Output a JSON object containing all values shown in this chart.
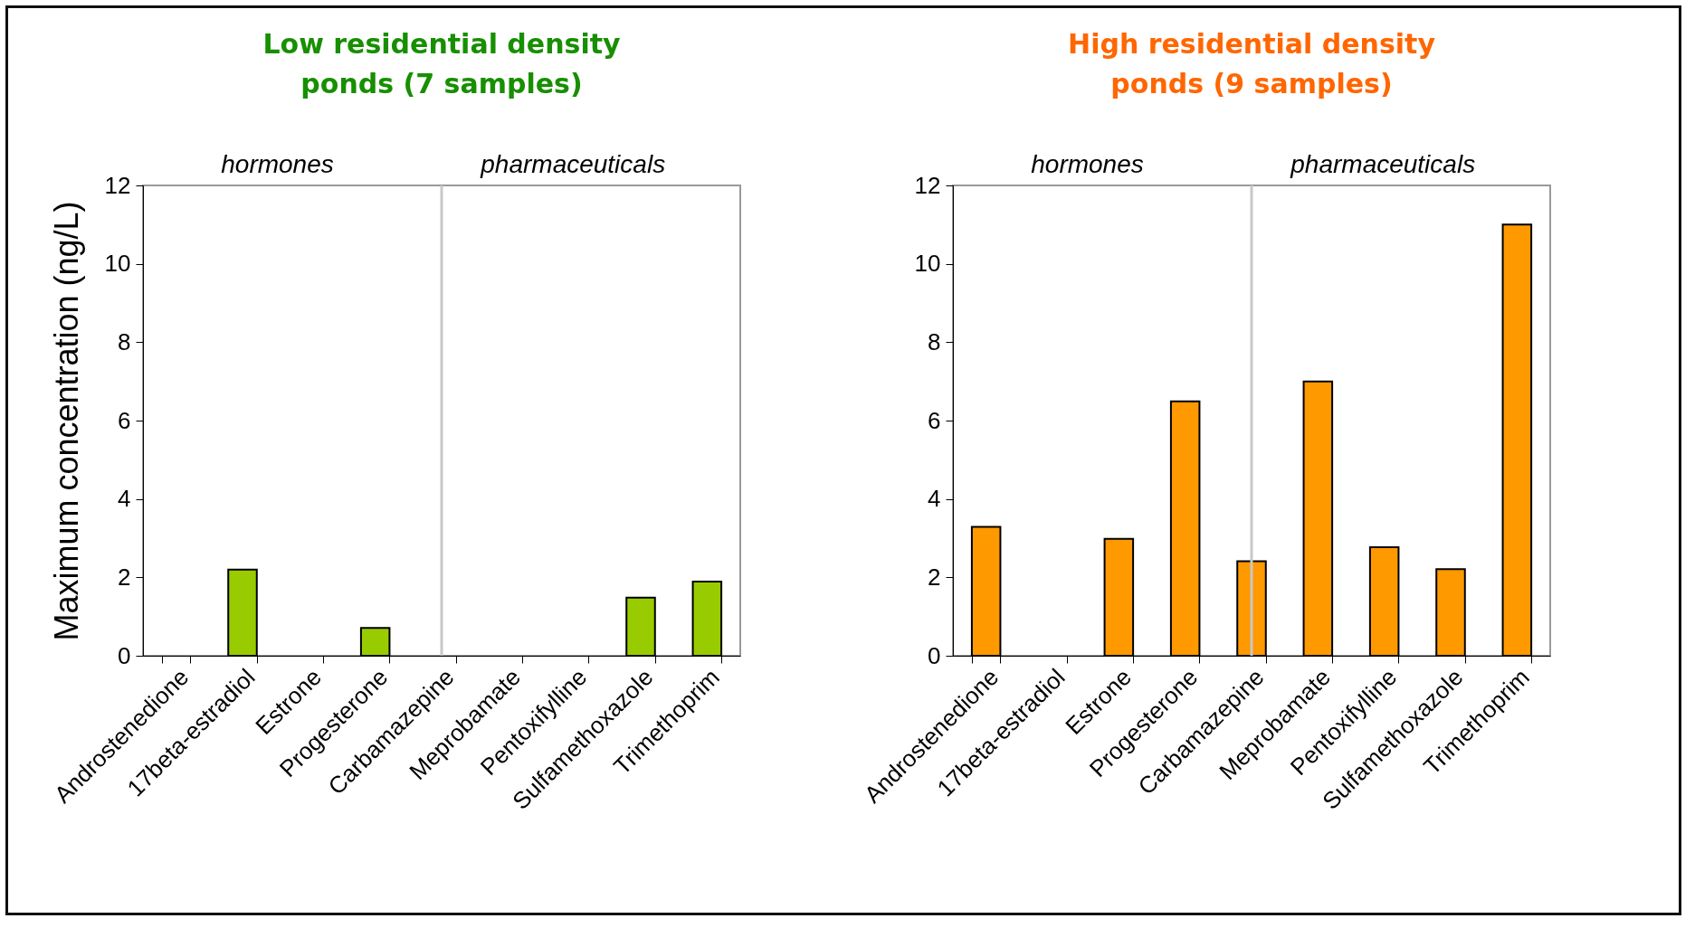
{
  "chart_data": [
    {
      "type": "bar",
      "title": "Low residential density ponds (7 samples)",
      "ylabel": "Maximum concentration (ng/L)",
      "categories": [
        "Androstenedione",
        "17beta-estradiol",
        "Estrone",
        "Progesterone",
        "Carbamazepine",
        "Meprobamate",
        "Pentoxifylline",
        "Sulfamethoxazole",
        "Trimethoprim"
      ],
      "series": [
        {
          "color": "#99cc00",
          "values": [
            0,
            2.2,
            0,
            0.71,
            0,
            0,
            0,
            1.48,
            1.89
          ]
        }
      ],
      "ylim": [
        0,
        12
      ],
      "yticks": [
        0,
        2,
        4,
        6,
        8,
        10,
        12
      ],
      "grid": false,
      "annotations": [
        "hormones",
        "pharmaceuticals"
      ],
      "ref_lines": [
        {
          "axis": "x",
          "value": "Carbamazepine",
          "color": "#c8c8c8"
        }
      ]
    },
    {
      "type": "bar",
      "title": "High residential density ponds (9 samples)",
      "categories": [
        "Androstenedione",
        "17beta-estradiol",
        "Estrone",
        "Progesterone",
        "Carbamazepine",
        "Meprobamate",
        "Pentoxifylline",
        "Sulfamethoxazole",
        "Trimethoprim"
      ],
      "series": [
        {
          "color": "#ff9900",
          "values": [
            3.29,
            0,
            2.98,
            6.49,
            2.41,
            7.0,
            2.77,
            2.21,
            11.0
          ]
        }
      ],
      "ylim": [
        0,
        12
      ],
      "yticks": [
        0,
        2,
        4,
        6,
        8,
        10,
        12
      ],
      "grid": false,
      "annotations": [
        "hormones",
        "pharmaceuticals"
      ],
      "ref_lines": [
        {
          "axis": "x",
          "value": "Carbamazepine",
          "color": "#c8c8c8"
        }
      ]
    }
  ]
}
